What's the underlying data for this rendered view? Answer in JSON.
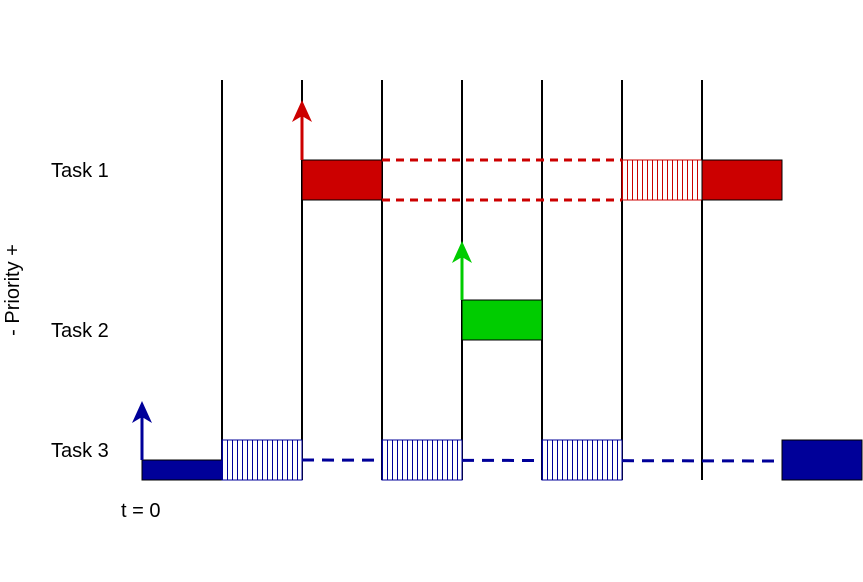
{
  "labels": {
    "task1": "Task 1",
    "task2": "Task 2",
    "task3": "Task 3",
    "time_origin": "t = 0",
    "priority_axis": "- Priority +"
  },
  "colors": {
    "task1": "#cc0000",
    "task2": "#00cc00",
    "task3": "#000099",
    "line": "#000000"
  }
}
